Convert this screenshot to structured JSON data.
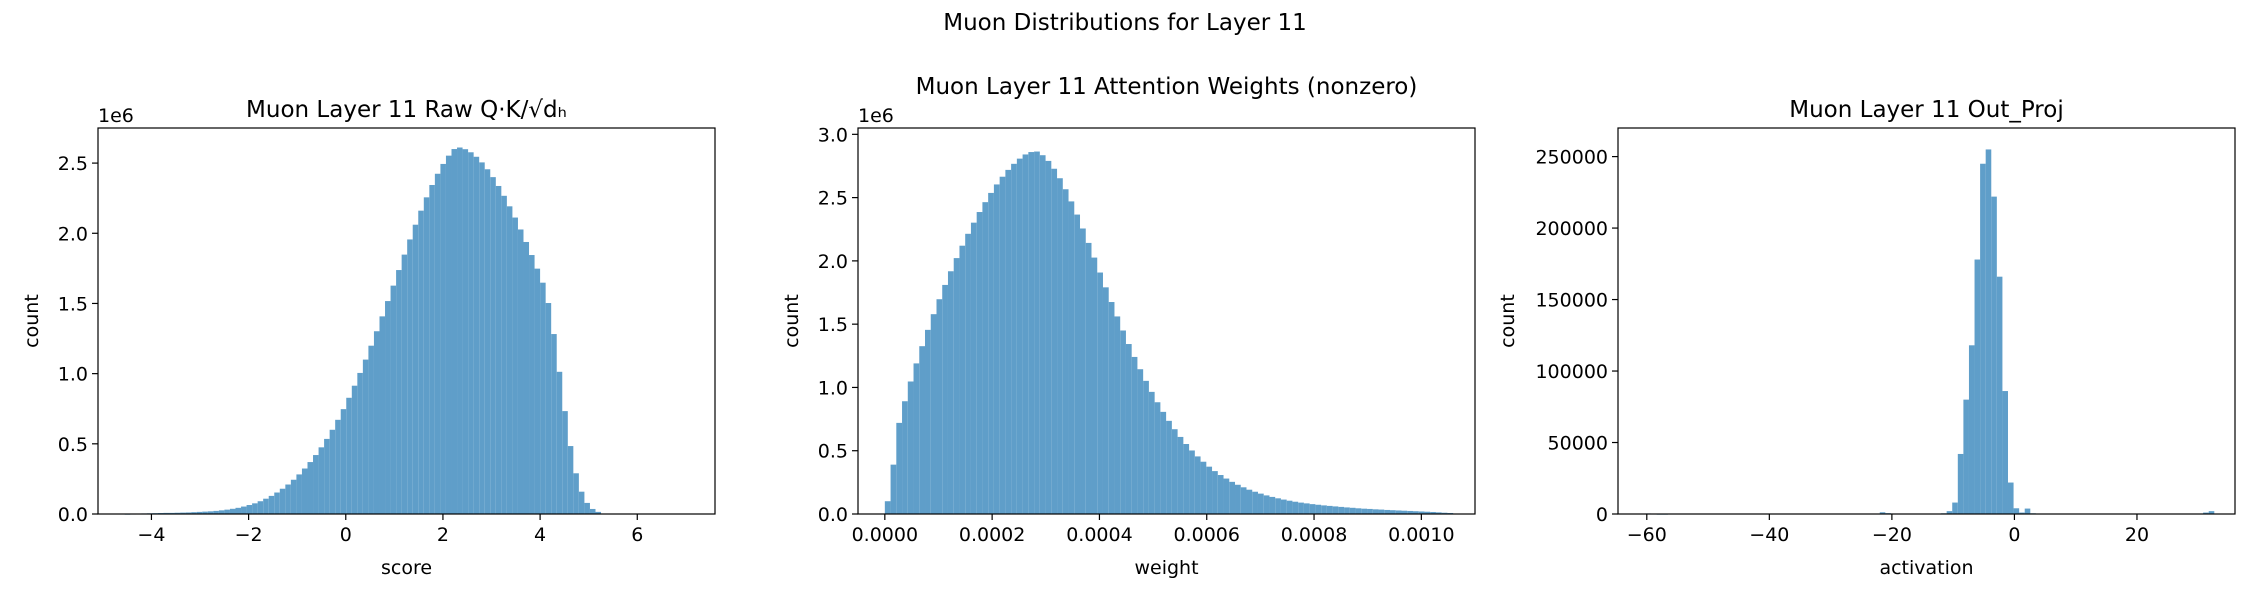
{
  "suptitle": "Muon Distributions for Layer 11",
  "bar_color": "#5f9ec9",
  "chart_data": [
    {
      "type": "bar",
      "title": "Muon Layer 11 Raw Q·K/√dₕ",
      "xlabel": "score",
      "ylabel": "count",
      "y_offset_label": "1e6",
      "xlim": [
        -5.1,
        7.6
      ],
      "ylim": [
        0,
        2750000
      ],
      "x_ticks": [
        -4,
        -2,
        0,
        2,
        4,
        6
      ],
      "x_tick_labels": [
        "−4",
        "−2",
        "0",
        "2",
        "4",
        "6"
      ],
      "y_ticks": [
        0,
        500000,
        1000000,
        1500000,
        2000000,
        2500000
      ],
      "y_tick_labels": [
        "0.0",
        "0.5",
        "1.0",
        "1.5",
        "2.0",
        "2.5"
      ],
      "bin_start": -4.55,
      "bin_width": 0.114,
      "values": [
        1000,
        2000,
        3000,
        4000,
        5000,
        6000,
        7000,
        8000,
        8000,
        9000,
        10000,
        11000,
        13000,
        15000,
        17000,
        19000,
        22000,
        26000,
        31000,
        37000,
        44000,
        53000,
        64000,
        76000,
        91000,
        109000,
        129000,
        153000,
        180000,
        210000,
        244000,
        282000,
        324000,
        370000,
        420000,
        475000,
        535000,
        600000,
        671000,
        747000,
        828000,
        914000,
        1005000,
        1100000,
        1199000,
        1302000,
        1408000,
        1517000,
        1627000,
        1738000,
        1848000,
        1956000,
        2061000,
        2161000,
        2256000,
        2344000,
        2424000,
        2494000,
        2553000,
        2600000,
        2611000,
        2599000,
        2577000,
        2545000,
        2505000,
        2456000,
        2400000,
        2337000,
        2267000,
        2192000,
        2112000,
        2027000,
        1938000,
        1845000,
        1748000,
        1648000,
        1503000,
        1282000,
        1013000,
        733000,
        484000,
        290000,
        159000,
        79000,
        36000,
        15000
      ]
    },
    {
      "type": "bar",
      "title": "Muon Layer 11 Attention Weights (nonzero)",
      "xlabel": "weight",
      "ylabel": "count",
      "y_offset_label": "1e6",
      "xlim": [
        -5e-05,
        0.0011
      ],
      "ylim": [
        0,
        3050000
      ],
      "x_ticks": [
        0,
        0.0002,
        0.0004,
        0.0006,
        0.0008,
        0.001
      ],
      "x_tick_labels": [
        "0.0000",
        "0.0002",
        "0.0004",
        "0.0006",
        "0.0008",
        "0.0010"
      ],
      "y_ticks": [
        0,
        500000,
        1000000,
        1500000,
        2000000,
        2500000,
        3000000
      ],
      "y_tick_labels": [
        "0.0",
        "0.5",
        "1.0",
        "1.5",
        "2.0",
        "2.5",
        "3.0"
      ],
      "bin_start": 0,
      "bin_width": 1.07e-05,
      "values": [
        101000,
        390000,
        720000,
        891000,
        1047000,
        1190000,
        1326000,
        1455000,
        1579000,
        1697000,
        1810000,
        1918000,
        2022000,
        2120000,
        2214000,
        2302000,
        2386000,
        2464000,
        2537000,
        2604000,
        2665000,
        2719000,
        2767000,
        2808000,
        2841000,
        2860000,
        2864000,
        2835000,
        2790000,
        2728000,
        2653000,
        2566000,
        2470000,
        2366000,
        2256000,
        2142000,
        2026000,
        1908000,
        1791000,
        1675000,
        1561000,
        1450000,
        1343000,
        1241000,
        1144000,
        1052000,
        965000,
        883000,
        807000,
        736000,
        670000,
        609000,
        553000,
        502000,
        455000,
        413000,
        374000,
        339000,
        308000,
        280000,
        254000,
        231000,
        211000,
        192000,
        176000,
        161000,
        147000,
        135000,
        124000,
        114000,
        105000,
        97000,
        90000,
        84000,
        78000,
        73000,
        68000,
        64000,
        60000,
        56000,
        52000,
        49000,
        45000,
        42000,
        40000,
        37000,
        35000,
        32000,
        30000,
        28000,
        26000,
        24000,
        22000,
        20000,
        18000,
        16000,
        13000,
        10000,
        8000
      ]
    },
    {
      "type": "bar",
      "title": "Muon Layer 11 Out_Proj",
      "xlabel": "activation",
      "ylabel": "count",
      "y_offset_label": "",
      "xlim": [
        -64.7,
        36
      ],
      "ylim": [
        0,
        270000
      ],
      "x_ticks": [
        -60,
        -40,
        -20,
        0,
        20
      ],
      "x_tick_labels": [
        "−60",
        "−40",
        "−20",
        "0",
        "20"
      ],
      "y_ticks": [
        0,
        50000,
        100000,
        150000,
        200000,
        250000
      ],
      "y_tick_labels": [
        "0",
        "50000",
        "100000",
        "150000",
        "200000",
        "250000"
      ],
      "bin_start": -60.2,
      "bin_width": 0.91,
      "values": [
        400,
        200,
        100,
        100,
        0,
        0,
        0,
        0,
        0,
        0,
        0,
        0,
        0,
        0,
        0,
        0,
        0,
        0,
        0,
        0,
        0,
        0,
        0,
        0,
        0,
        0,
        0,
        0,
        0,
        0,
        0,
        0,
        0,
        0,
        0,
        0,
        0,
        0,
        0,
        0,
        0,
        0,
        1200,
        600,
        0,
        0,
        0,
        0,
        0,
        0,
        0,
        0,
        0,
        500,
        2000,
        8000,
        42000,
        80000,
        118000,
        178000,
        245000,
        255000,
        222000,
        166000,
        86000,
        22000,
        4000,
        1000,
        3800,
        500,
        0,
        0,
        0,
        0,
        0,
        0,
        0,
        0,
        0,
        0,
        0,
        0,
        0,
        0,
        0,
        0,
        0,
        0,
        0,
        0,
        0,
        0,
        0,
        0,
        0,
        0,
        0,
        0,
        0,
        0,
        1000,
        2000
      ]
    }
  ]
}
